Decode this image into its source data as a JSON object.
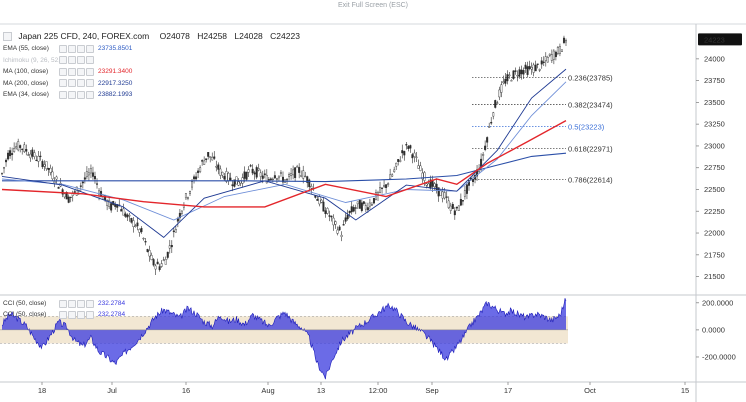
{
  "header": {
    "exit_fullscreen": "Exit Full Screen (ESC)"
  },
  "symbol": {
    "title": "Japan 225 CFD, 240, FOREX.com",
    "open": "O24078",
    "high": "H24258",
    "low": "L24028",
    "close": "C24223",
    "last_price": "24223"
  },
  "indicators": [
    {
      "name": "EMA (55, close)",
      "value": "23735.8501",
      "color": "#2b59c3",
      "faded": false
    },
    {
      "name": "Ichimoku (9, 26, 52, 26)",
      "value": "",
      "color": "#b9bcc2",
      "faded": true
    },
    {
      "name": "MA (100, close)",
      "value": "23291.3400",
      "color": "#e3262b",
      "faded": false
    },
    {
      "name": "MA (200, close)",
      "value": "22917.3250",
      "color": "#1f3a93",
      "faded": false
    },
    {
      "name": "EMA (34, close)",
      "value": "23882.1993",
      "color": "#1f3a93",
      "faded": false
    }
  ],
  "oscillators": [
    {
      "name": "CCI (50, close)",
      "value": "232.2784"
    },
    {
      "name": "CCI (50, close)",
      "value": "232.2784"
    }
  ],
  "colors": {
    "up_candle": "#2c2c2c",
    "down_candle": "#2c2c2c",
    "ma100": "#e3262b",
    "ma200": "#2b4fa8",
    "ema34": "#1f3a93",
    "ema55": "#6f8fd8",
    "cci_fill": "#3a3adf",
    "cci_band": "#f2e7d3",
    "fib": "#333333",
    "fib_half": "#3a6fd8"
  },
  "fibonacci": [
    {
      "label": "0.236(23785)",
      "level": 23785
    },
    {
      "label": "0.382(23474)",
      "level": 23474
    },
    {
      "label": "0.5(23223)",
      "level": 23223
    },
    {
      "label": "0.618(22971)",
      "level": 22971
    },
    {
      "label": "0.786(22614)",
      "level": 22614
    }
  ],
  "price_axis": [
    "24000",
    "23750",
    "23500",
    "23250",
    "23000",
    "22750",
    "22500",
    "22250",
    "22000",
    "21750",
    "21500"
  ],
  "cci_axis": [
    "200.0000",
    "0.0000",
    "-200.0000"
  ],
  "time_axis": [
    "18",
    "Jul",
    "16",
    "Aug",
    "13",
    "12:00",
    "Sep",
    "17",
    "Oct",
    "15"
  ],
  "chart_data": {
    "type": "candlestick",
    "title": "Japan 225 CFD, 240, FOREX.com",
    "ylim": [
      21300,
      24400
    ],
    "cci_ylim": [
      -370,
      250
    ],
    "cci_band": [
      -100,
      100
    ],
    "x_ticks": [
      "18",
      "Jul",
      "16",
      "Aug",
      "13",
      "12:00",
      "Sep",
      "17",
      "Oct",
      "15"
    ],
    "price_path": [
      [
        0,
        22680
      ],
      [
        3,
        22900
      ],
      [
        6,
        22980
      ],
      [
        9,
        23000
      ],
      [
        12,
        22950
      ],
      [
        15,
        22900
      ],
      [
        18,
        22850
      ],
      [
        21,
        22800
      ],
      [
        24,
        22700
      ],
      [
        27,
        22600
      ],
      [
        30,
        22500
      ],
      [
        33,
        22400
      ],
      [
        36,
        22450
      ],
      [
        39,
        22550
      ],
      [
        42,
        22650
      ],
      [
        45,
        22700
      ],
      [
        48,
        22500
      ],
      [
        51,
        22380
      ],
      [
        54,
        22300
      ],
      [
        57,
        22350
      ],
      [
        60,
        22250
      ],
      [
        63,
        22150
      ],
      [
        66,
        22100
      ],
      [
        69,
        22000
      ],
      [
        72,
        21800
      ],
      [
        75,
        21650
      ],
      [
        78,
        21620
      ],
      [
        81,
        21700
      ],
      [
        84,
        21900
      ],
      [
        87,
        22150
      ],
      [
        90,
        22350
      ],
      [
        93,
        22500
      ],
      [
        96,
        22650
      ],
      [
        99,
        22800
      ],
      [
        102,
        22900
      ],
      [
        105,
        22820
      ],
      [
        108,
        22700
      ],
      [
        111,
        22650
      ],
      [
        114,
        22600
      ],
      [
        117,
        22580
      ],
      [
        120,
        22650
      ],
      [
        123,
        22720
      ],
      [
        126,
        22700
      ],
      [
        129,
        22650
      ],
      [
        132,
        22620
      ],
      [
        135,
        22680
      ],
      [
        138,
        22640
      ],
      [
        141,
        22600
      ],
      [
        144,
        22680
      ],
      [
        147,
        22720
      ],
      [
        150,
        22650
      ],
      [
        153,
        22560
      ],
      [
        156,
        22400
      ],
      [
        159,
        22300
      ],
      [
        162,
        22200
      ],
      [
        165,
        22080
      ],
      [
        168,
        22000
      ],
      [
        171,
        22200
      ],
      [
        174,
        22280
      ],
      [
        177,
        22320
      ],
      [
        180,
        22300
      ],
      [
        183,
        22360
      ],
      [
        186,
        22440
      ],
      [
        189,
        22520
      ],
      [
        192,
        22620
      ],
      [
        195,
        22750
      ],
      [
        198,
        22920
      ],
      [
        201,
        23000
      ],
      [
        204,
        22880
      ],
      [
        207,
        22720
      ],
      [
        210,
        22600
      ],
      [
        213,
        22550
      ],
      [
        216,
        22480
      ],
      [
        219,
        22420
      ],
      [
        222,
        22300
      ],
      [
        225,
        22250
      ],
      [
        228,
        22400
      ],
      [
        231,
        22550
      ],
      [
        234,
        22650
      ],
      [
        237,
        22800
      ],
      [
        240,
        23100
      ],
      [
        243,
        23400
      ],
      [
        246,
        23600
      ],
      [
        249,
        23750
      ],
      [
        252,
        23800
      ],
      [
        255,
        23850
      ],
      [
        258,
        23870
      ],
      [
        261,
        23880
      ],
      [
        264,
        23900
      ],
      [
        267,
        23920
      ],
      [
        270,
        24000
      ],
      [
        273,
        24050
      ],
      [
        276,
        24100
      ],
      [
        279,
        24223
      ]
    ],
    "ma100": [
      [
        0,
        22500
      ],
      [
        40,
        22450
      ],
      [
        70,
        22360
      ],
      [
        100,
        22300
      ],
      [
        130,
        22300
      ],
      [
        160,
        22560
      ],
      [
        190,
        22420
      ],
      [
        215,
        22620
      ],
      [
        225,
        22560
      ],
      [
        240,
        22800
      ],
      [
        260,
        23050
      ],
      [
        279,
        23291
      ]
    ],
    "ma200": [
      [
        0,
        22600
      ],
      [
        60,
        22600
      ],
      [
        120,
        22600
      ],
      [
        160,
        22590
      ],
      [
        200,
        22620
      ],
      [
        225,
        22660
      ],
      [
        245,
        22780
      ],
      [
        262,
        22880
      ],
      [
        279,
        22917
      ]
    ],
    "ema34": [
      [
        0,
        22650
      ],
      [
        30,
        22550
      ],
      [
        60,
        22300
      ],
      [
        80,
        21950
      ],
      [
        100,
        22400
      ],
      [
        130,
        22600
      ],
      [
        160,
        22400
      ],
      [
        175,
        22150
      ],
      [
        200,
        22550
      ],
      [
        225,
        22480
      ],
      [
        245,
        22950
      ],
      [
        262,
        23550
      ],
      [
        279,
        23882
      ]
    ],
    "ema55": [
      [
        0,
        22620
      ],
      [
        30,
        22560
      ],
      [
        60,
        22380
      ],
      [
        85,
        22150
      ],
      [
        110,
        22420
      ],
      [
        140,
        22560
      ],
      [
        170,
        22350
      ],
      [
        200,
        22500
      ],
      [
        225,
        22480
      ],
      [
        245,
        22850
      ],
      [
        262,
        23350
      ],
      [
        279,
        23736
      ]
    ],
    "cci_path": [
      [
        0,
        40
      ],
      [
        4,
        120
      ],
      [
        8,
        80
      ],
      [
        12,
        30
      ],
      [
        16,
        -60
      ],
      [
        20,
        -130
      ],
      [
        24,
        -40
      ],
      [
        28,
        60
      ],
      [
        32,
        20
      ],
      [
        36,
        -80
      ],
      [
        40,
        -120
      ],
      [
        44,
        -60
      ],
      [
        48,
        -160
      ],
      [
        52,
        -200
      ],
      [
        56,
        -250
      ],
      [
        60,
        -180
      ],
      [
        64,
        -120
      ],
      [
        68,
        -60
      ],
      [
        72,
        20
      ],
      [
        76,
        100
      ],
      [
        80,
        150
      ],
      [
        84,
        120
      ],
      [
        88,
        90
      ],
      [
        92,
        160
      ],
      [
        96,
        120
      ],
      [
        100,
        60
      ],
      [
        104,
        30
      ],
      [
        108,
        110
      ],
      [
        112,
        60
      ],
      [
        116,
        80
      ],
      [
        120,
        40
      ],
      [
        124,
        110
      ],
      [
        128,
        70
      ],
      [
        132,
        30
      ],
      [
        136,
        90
      ],
      [
        140,
        130
      ],
      [
        144,
        60
      ],
      [
        148,
        20
      ],
      [
        152,
        -60
      ],
      [
        156,
        -250
      ],
      [
        160,
        -350
      ],
      [
        164,
        -200
      ],
      [
        168,
        -80
      ],
      [
        172,
        -30
      ],
      [
        176,
        20
      ],
      [
        180,
        60
      ],
      [
        184,
        100
      ],
      [
        188,
        150
      ],
      [
        192,
        180
      ],
      [
        196,
        130
      ],
      [
        200,
        60
      ],
      [
        204,
        20
      ],
      [
        208,
        -20
      ],
      [
        212,
        -80
      ],
      [
        216,
        -150
      ],
      [
        220,
        -220
      ],
      [
        224,
        -140
      ],
      [
        228,
        -60
      ],
      [
        232,
        40
      ],
      [
        236,
        110
      ],
      [
        240,
        200
      ],
      [
        244,
        160
      ],
      [
        248,
        120
      ],
      [
        252,
        140
      ],
      [
        256,
        110
      ],
      [
        260,
        90
      ],
      [
        264,
        120
      ],
      [
        268,
        100
      ],
      [
        272,
        70
      ],
      [
        276,
        110
      ],
      [
        279,
        232
      ]
    ]
  }
}
